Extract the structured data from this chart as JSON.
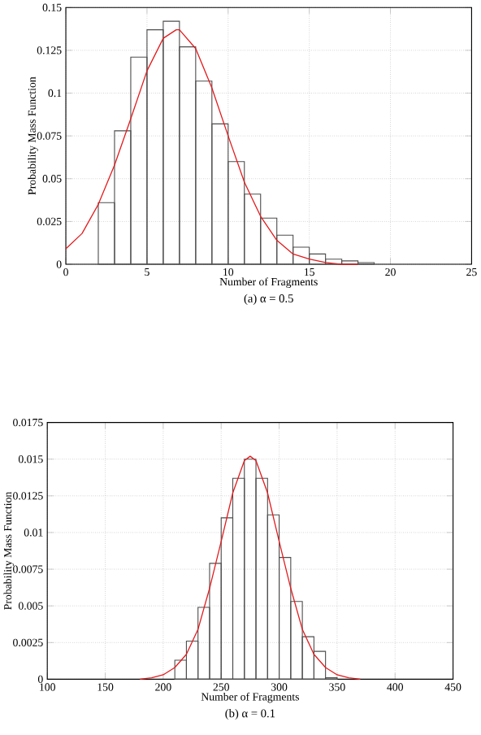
{
  "chart_data": [
    {
      "type": "histogram",
      "title": "(a) α = 0.5",
      "xlabel": "Number of Fragments",
      "ylabel": "Probability Mass Function",
      "color": "#4d4d4d",
      "grid": true,
      "bins": [
        2,
        3,
        4,
        5,
        6,
        7,
        8,
        9,
        10,
        11,
        12,
        13,
        14,
        15,
        16,
        17,
        18,
        19
      ],
      "values": [
        0.036,
        0.078,
        0.121,
        0.137,
        0.142,
        0.127,
        0.107,
        0.082,
        0.06,
        0.041,
        0.027,
        0.017,
        0.01,
        0.006,
        0.003,
        0.002,
        0.001
      ],
      "xlim": [
        0,
        25
      ],
      "xticks": [
        0,
        5,
        10,
        15,
        20,
        25
      ],
      "ylim": [
        0,
        0.15
      ],
      "yticks": [
        0,
        0.025,
        0.05,
        0.075,
        0.1,
        0.125,
        0.15
      ],
      "series": [
        {
          "type": "line",
          "color": "#e31a1c",
          "x": [
            0,
            1,
            2,
            3,
            4,
            5,
            6,
            6.8,
            7,
            8,
            9,
            10,
            11,
            12,
            13,
            14,
            15,
            16,
            17,
            18
          ],
          "values": [
            0.009,
            0.018,
            0.035,
            0.058,
            0.085,
            0.113,
            0.132,
            0.137,
            0.137,
            0.126,
            0.103,
            0.075,
            0.048,
            0.028,
            0.014,
            0.006,
            0.003,
            0.001,
            0,
            0
          ]
        }
      ]
    },
    {
      "type": "histogram",
      "title": "(b) α = 0.1",
      "xlabel": "Number of Fragments",
      "ylabel": "Probability Mass Function",
      "color": "#4d4d4d",
      "grid": true,
      "bins": [
        210,
        220,
        230,
        240,
        250,
        260,
        270,
        280,
        290,
        300,
        310,
        320,
        330,
        340,
        350
      ],
      "values": [
        0.0013,
        0.0026,
        0.0049,
        0.0079,
        0.011,
        0.0137,
        0.015,
        0.0137,
        0.0112,
        0.0083,
        0.0053,
        0.0029,
        0.0019,
        0.0001
      ],
      "xlim": [
        100,
        450
      ],
      "xticks": [
        100,
        150,
        200,
        250,
        300,
        350,
        400,
        450
      ],
      "ylim": [
        0,
        0.0175
      ],
      "yticks": [
        0,
        0.0025,
        0.005,
        0.0075,
        0.01,
        0.0125,
        0.015,
        0.0175
      ],
      "series": [
        {
          "type": "line",
          "color": "#e31a1c",
          "x": [
            180,
            190,
            200,
            210,
            220,
            230,
            240,
            250,
            260,
            270,
            275,
            280,
            290,
            300,
            310,
            320,
            330,
            340,
            350,
            360,
            370
          ],
          "values": [
            0,
            0.0001,
            0.0003,
            0.0008,
            0.0017,
            0.0034,
            0.0062,
            0.0094,
            0.0127,
            0.0149,
            0.0152,
            0.0149,
            0.0127,
            0.0094,
            0.0062,
            0.0034,
            0.0017,
            0.0008,
            0.0003,
            0.0001,
            0
          ]
        }
      ]
    }
  ]
}
